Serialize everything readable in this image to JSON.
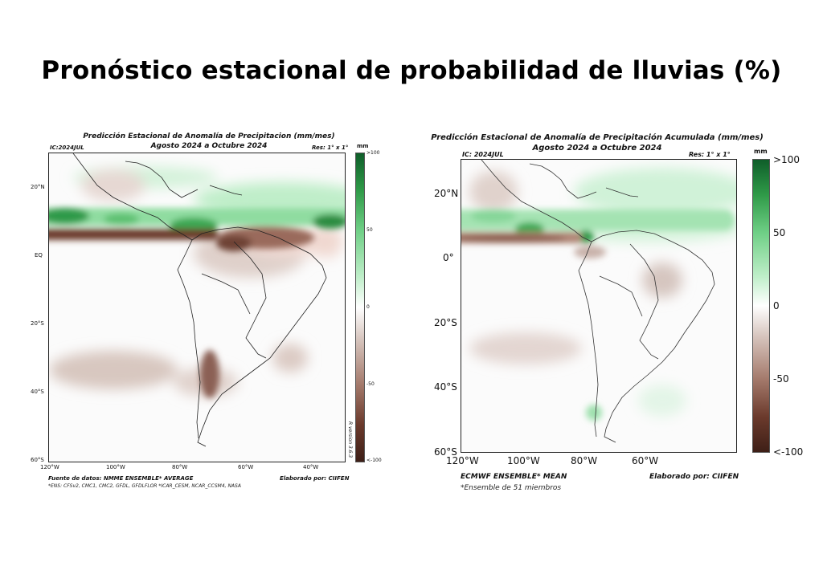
{
  "page_title": "Pronóstico estacional de probabilidad de lluvias (%)",
  "left_map": {
    "title_line1": "Predicción Estacional de Anomalía de Precipitacion (mm/mes)",
    "title_line2": "Agosto 2024 a Octubre 2024",
    "ic": "IC:2024JUL",
    "resolution": "Res: 1° x 1°",
    "lat_ticks": [
      "20°N",
      "EQ",
      "20°S",
      "40°S",
      "60°S"
    ],
    "lon_ticks": [
      "120°W",
      "100°W",
      "80°W",
      "60°W",
      "40°W"
    ],
    "colorbar_unit": "mm",
    "colorbar_labels": [
      ">100",
      "50",
      "0",
      "-50",
      "<-100"
    ],
    "version": "R version 3.6.3",
    "source_line": "Fuente de datos: NMME ENSEMBLE* AVERAGE",
    "credit": "Elaborado por: CIIFEN",
    "footnote": "*ENS: CFSv2, CMC1, CMC2, GFDL, GFDLFLOR  *ICAR_CESM, NCAR_CCSM4, NASA"
  },
  "right_map": {
    "title_line1": "Predicción Estacional de Anomalía de Precipitación Acumulada (mm/mes)",
    "title_line2": "Agosto 2024 a Octubre 2024",
    "ic": "IC: 2024JUL",
    "resolution": "Res: 1° x 1°",
    "lat_ticks": [
      "20°N",
      "0°",
      "20°S",
      "40°S",
      "60°S"
    ],
    "lon_ticks": [
      "120°W",
      "100°W",
      "80°W",
      "60°W"
    ],
    "colorbar_unit": "mm",
    "colorbar_labels": [
      ">100",
      "50",
      "0",
      "-50",
      "<-100"
    ],
    "source_line": "ECMWF ENSEMBLE* MEAN",
    "credit": "Elaborado por: CIIFEN",
    "footnote": "*Ensemble de 51 miembros"
  },
  "colors": {
    "wet_strong": "#1e8a3a",
    "wet_light": "#b8ecc4",
    "dry_strong": "#5a2e22",
    "dry_light": "#d9c8c2",
    "neutral": "#f8f8f8"
  }
}
